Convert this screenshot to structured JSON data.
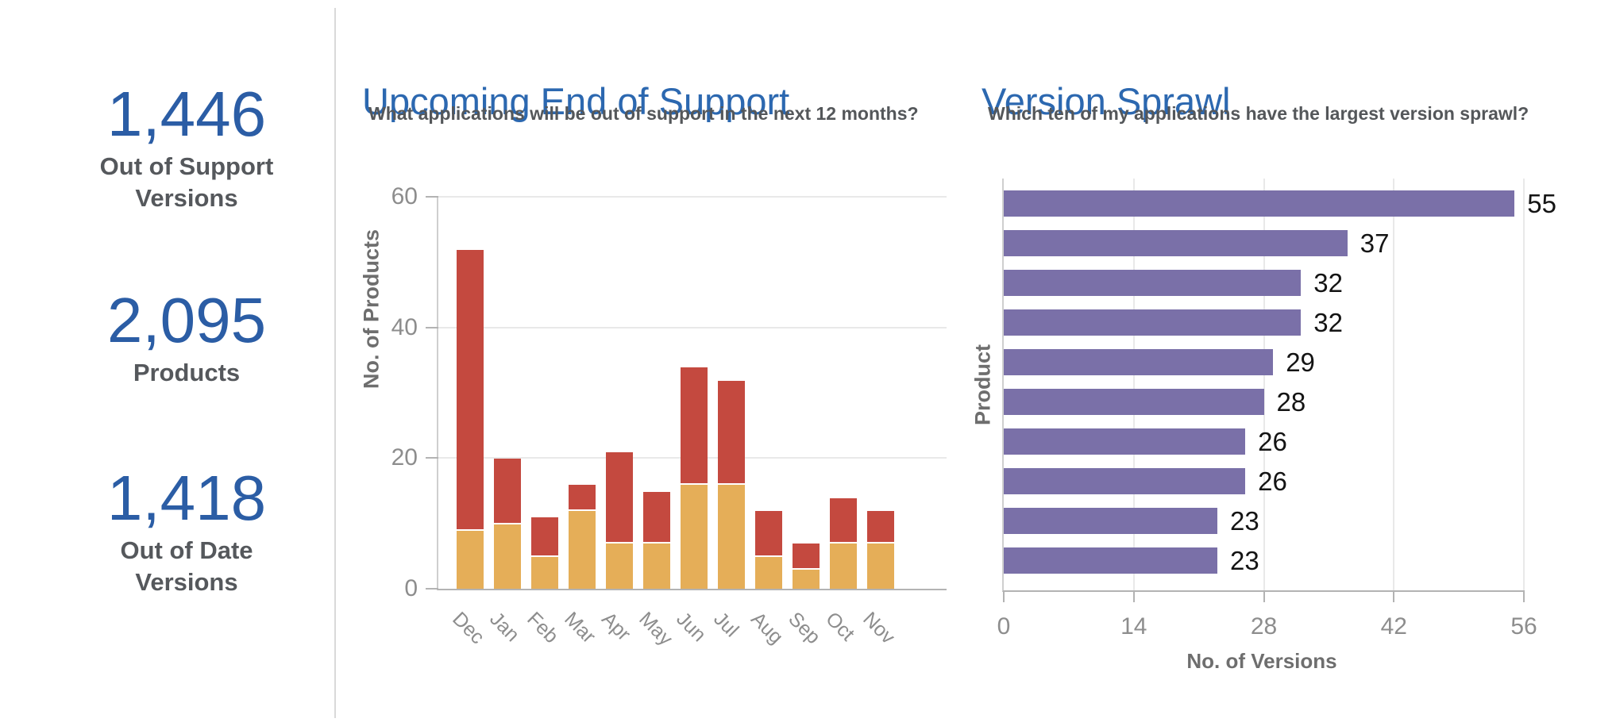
{
  "kpis": [
    {
      "value": "1,446",
      "label": "Out of Support\nVersions"
    },
    {
      "value": "2,095",
      "label": "Products"
    },
    {
      "value": "1,418",
      "label": "Out of Date\nVersions"
    }
  ],
  "colors": {
    "kpi_value": "#2b5da5",
    "kpi_label": "#55585c",
    "chart_title": "#2c68b0",
    "subtitle": "#54575a",
    "axis_text": "#8d8d8d",
    "axis_label": "#6e6e6e",
    "grid_line": "#e9e9e9",
    "axis_line": "#b3b3b3",
    "axis_line_light": "#cfcfcf",
    "divider": "#d9d9d9",
    "value_label": "#141414"
  },
  "chart_data": [
    {
      "type": "bar",
      "stacked": true,
      "orientation": "vertical",
      "title": "Upcoming End of Support",
      "subtitle": "What applications will be out of support in the next 12 months?",
      "xlabel": "",
      "ylabel": "No. of Products",
      "categories": [
        "Dec",
        "Jan",
        "Feb",
        "Mar",
        "Apr",
        "May",
        "Jun",
        "Jul",
        "Aug",
        "Sep",
        "Oct",
        "Nov"
      ],
      "series": [
        {
          "name": "series-1-bottom",
          "color": "#e5ae58",
          "values": [
            9,
            10,
            5,
            12,
            7,
            7,
            16,
            16,
            5,
            3,
            7,
            7
          ]
        },
        {
          "name": "series-2-top",
          "color": "#c4493f",
          "values": [
            43,
            10,
            6,
            4,
            14,
            8,
            18,
            16,
            7,
            4,
            7,
            5
          ]
        }
      ],
      "totals": [
        52,
        20,
        11,
        16,
        21,
        15,
        34,
        32,
        12,
        7,
        14,
        12
      ],
      "yticks": [
        0,
        20,
        40,
        60
      ],
      "ylim": [
        0,
        60
      ],
      "grid": true,
      "legend": "none"
    },
    {
      "type": "bar",
      "orientation": "horizontal",
      "title": "Version Sprawl",
      "subtitle": "Which ten of my applications have the largest version sprawl?",
      "xlabel": "No. of Versions",
      "ylabel": "Product",
      "bar_color": "#7a70a8",
      "values": [
        55,
        37,
        32,
        32,
        29,
        28,
        26,
        26,
        23,
        23
      ],
      "xticks": [
        0,
        14,
        28,
        42,
        56
      ],
      "xlim": [
        0,
        56
      ],
      "grid": true,
      "legend": "none"
    }
  ]
}
